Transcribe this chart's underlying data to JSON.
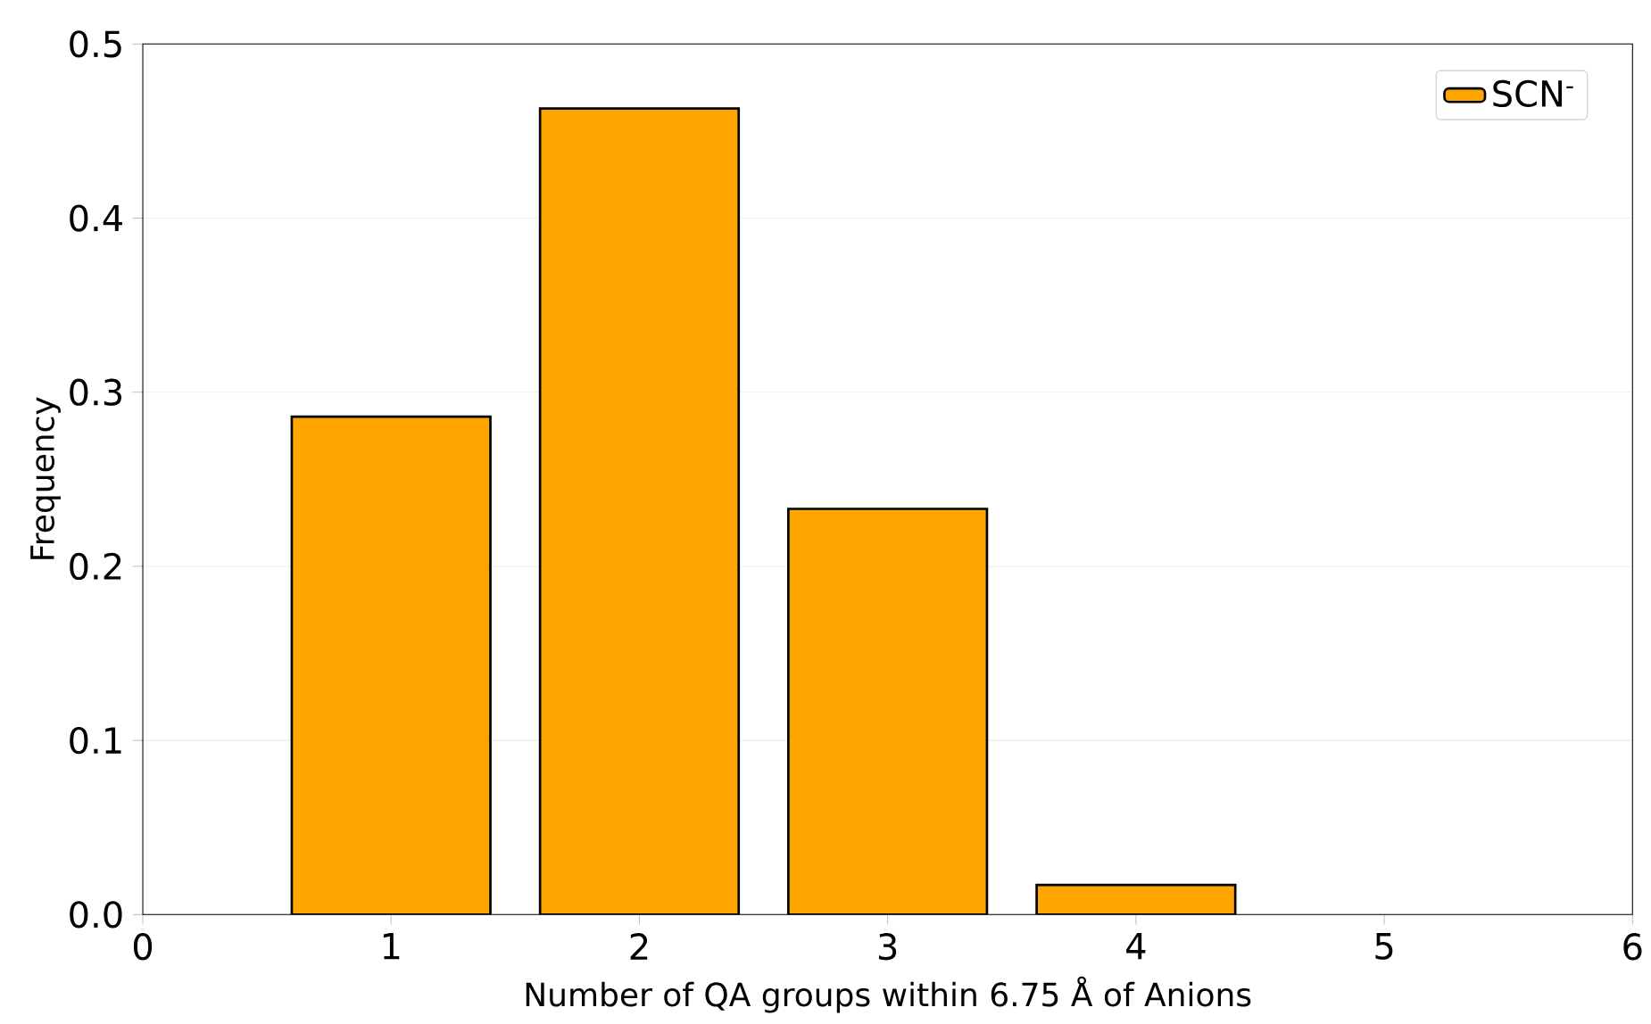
{
  "chart_data": {
    "type": "bar",
    "xlabel": "Number of QA groups within 6.75 Å of Anions",
    "ylabel": "Frequency",
    "x": [
      1,
      2,
      3,
      4
    ],
    "series": [
      {
        "name": "SCN$^{-}$",
        "color": "#ffa500",
        "values": [
          0.286,
          0.463,
          0.233,
          0.017
        ]
      }
    ],
    "xlim": [
      0,
      6
    ],
    "ylim": [
      0,
      0.5
    ],
    "xticks": [
      0,
      1,
      2,
      3,
      4,
      5,
      6
    ],
    "yticks": [
      {
        "value": 0,
        "label": "0.0"
      },
      {
        "value": 0.1,
        "label": "0.1"
      },
      {
        "value": 0.2,
        "label": "0.2"
      },
      {
        "value": 0.3,
        "label": "0.3"
      },
      {
        "value": 0.4,
        "label": "0.4"
      },
      {
        "value": 0.5,
        "label": "0.5"
      }
    ],
    "grid": "y",
    "legend": "top right"
  }
}
